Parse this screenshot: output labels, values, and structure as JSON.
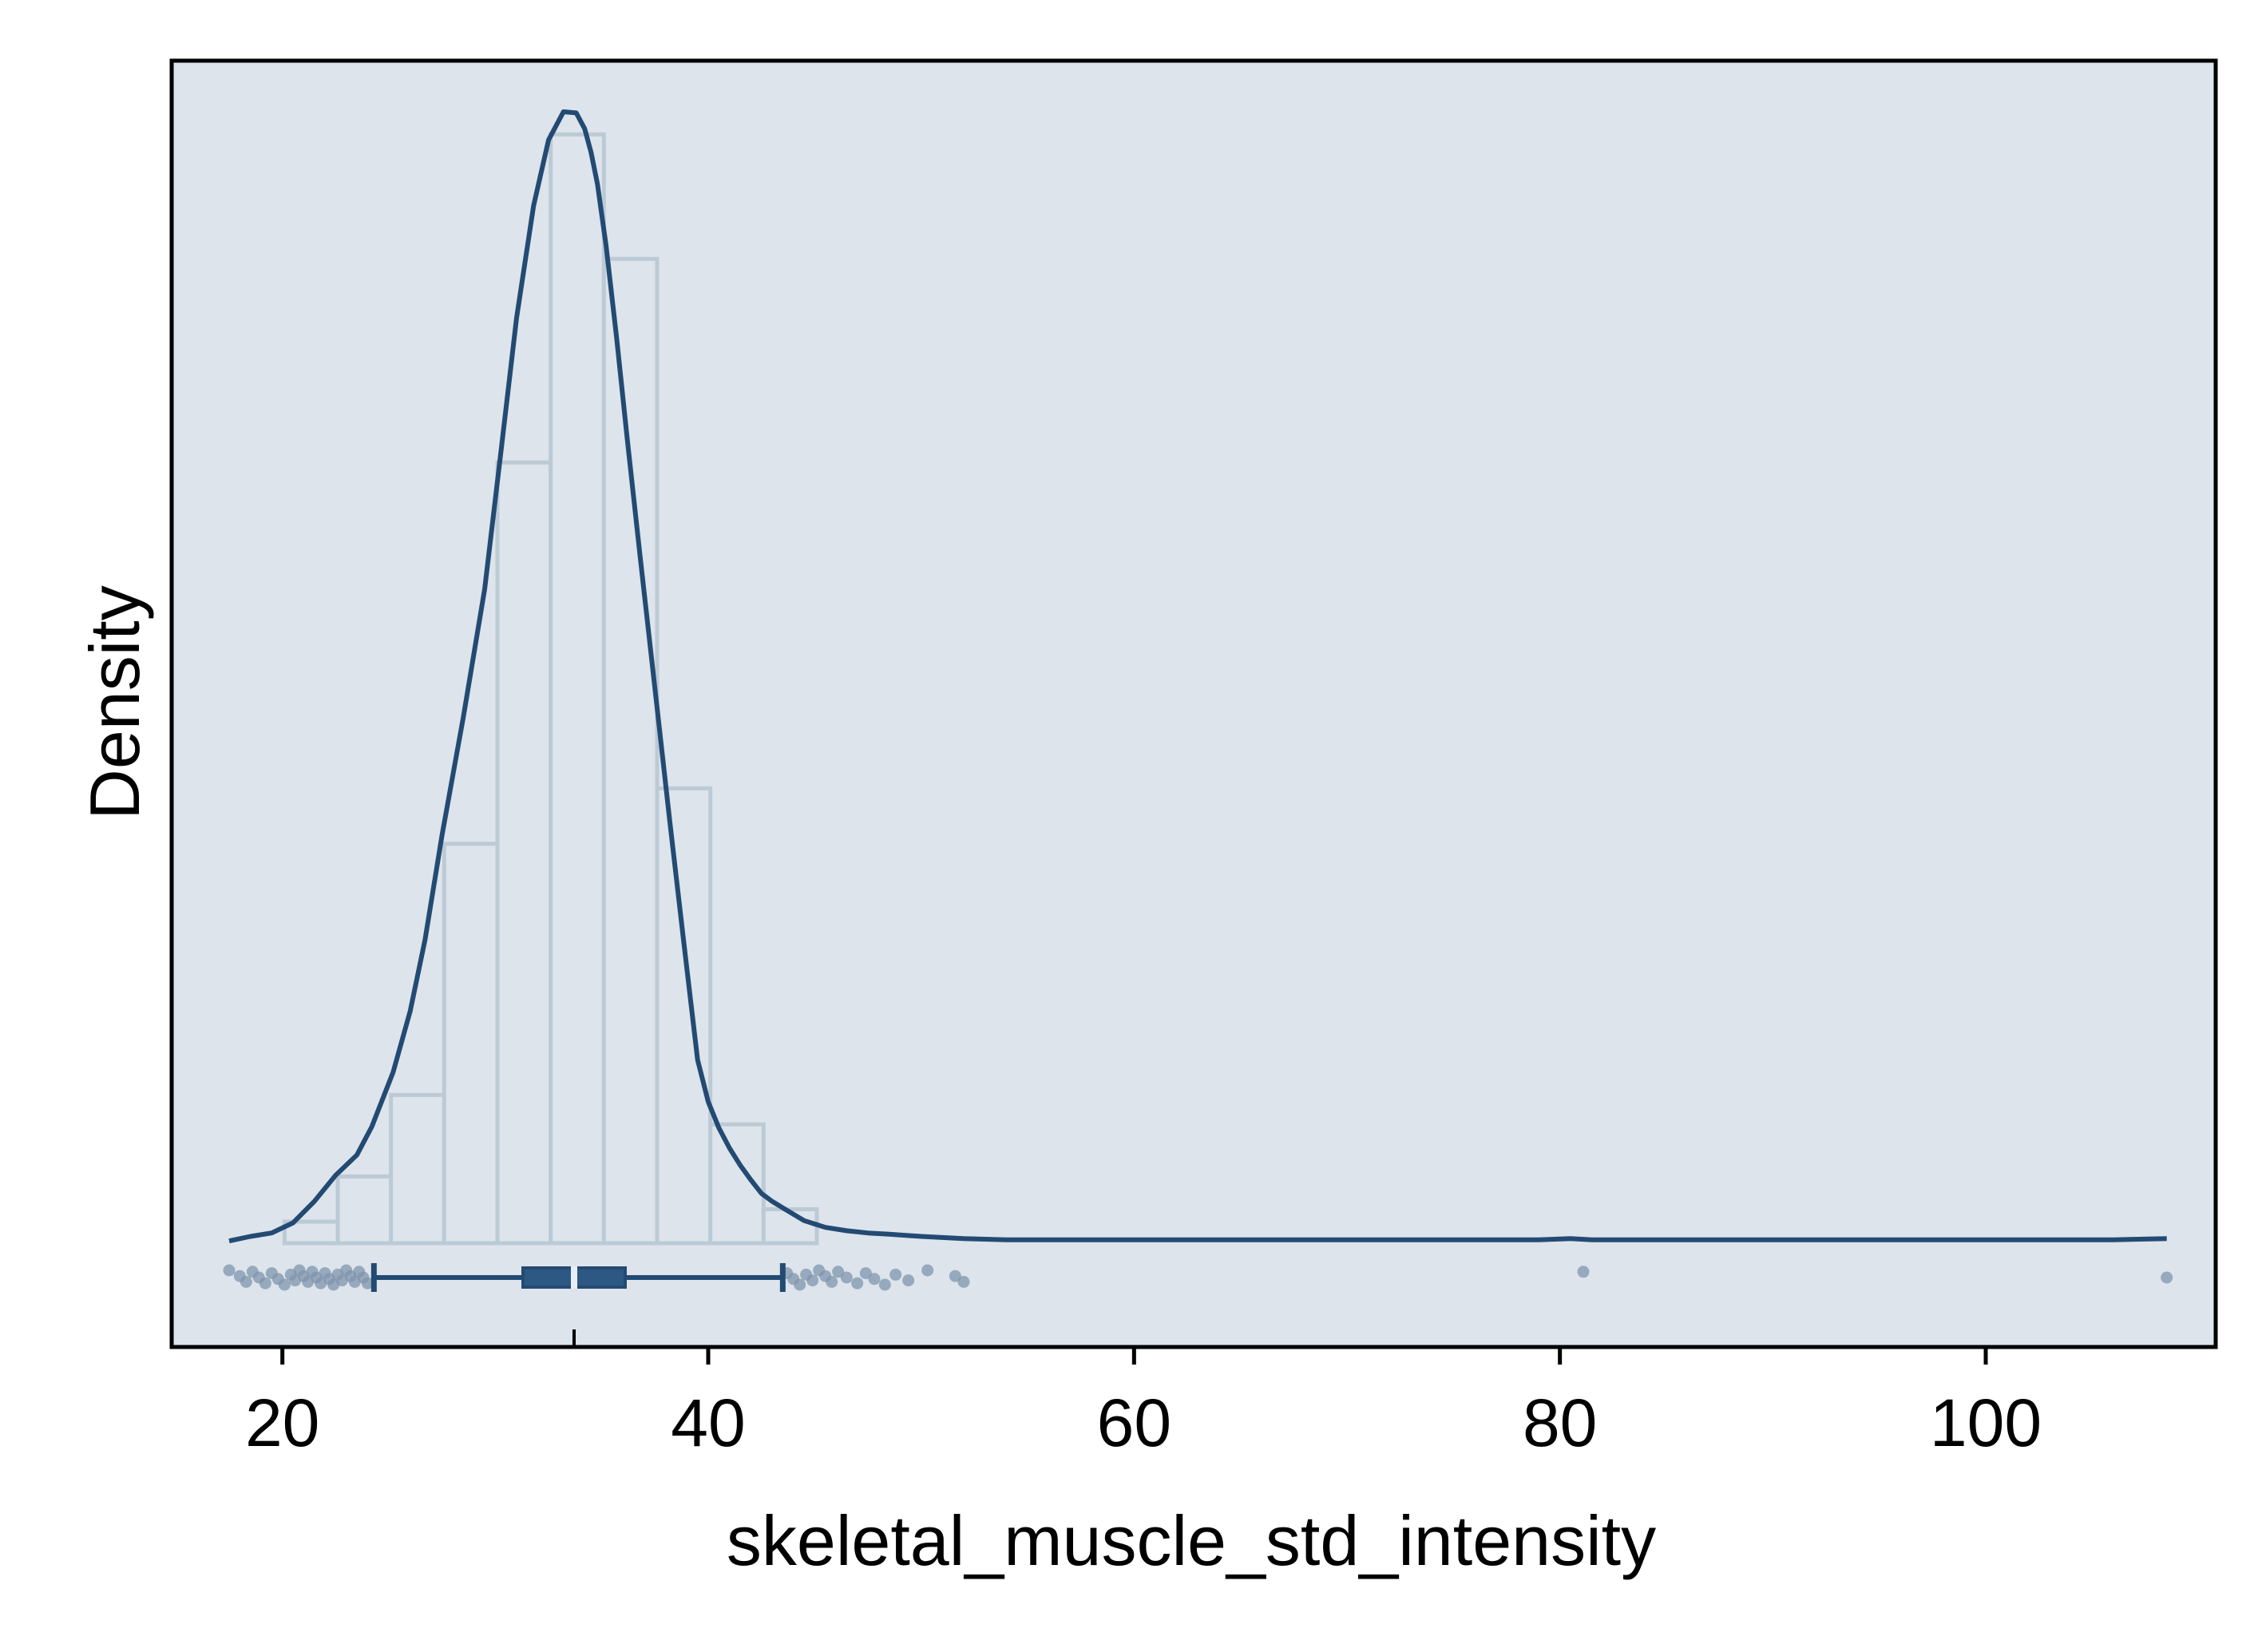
{
  "chart_data": {
    "type": "histogram",
    "title": "",
    "xlabel": "skeletal_muscle_std_intensity",
    "ylabel": "Density",
    "xlim": [
      14.8,
      110.8
    ],
    "xticks": [
      20,
      40,
      60,
      80,
      100
    ],
    "yticks_shown": false,
    "grid": false,
    "legend": "none",
    "colors": {
      "plot_background": "#dde4eb",
      "bar_fill": "#dde4eb",
      "bar_edge": "#bccad6",
      "kde_line": "#234a73",
      "box_fill": "#2e5884",
      "median": "#e8eef4",
      "points": "#7f96ad"
    },
    "histogram": {
      "bin_edges": [
        20.1,
        22.6,
        25.1,
        27.6,
        30.1,
        32.6,
        35.1,
        37.6,
        40.1,
        42.6,
        45.1
      ],
      "relative_heights": [
        0.019,
        0.059,
        0.131,
        0.353,
        0.69,
        0.98,
        0.87,
        0.402,
        0.105,
        0.03
      ]
    },
    "kde": {
      "x": [
        17.5,
        18.5,
        19.5,
        20.5,
        21.5,
        22.5,
        23.5,
        24.2,
        25.2,
        26.0,
        26.7,
        27.5,
        28.5,
        29.5,
        30.3,
        31.0,
        31.8,
        32.5,
        33.2,
        33.8,
        34.2,
        34.5,
        34.8,
        35.2,
        35.7,
        36.2,
        36.8,
        37.5,
        38.2,
        38.9,
        39.5,
        40.0,
        40.5,
        41.0,
        41.5,
        42.0,
        42.5,
        43.0,
        43.7,
        44.5,
        45.5,
        46.5,
        47.5,
        48.5,
        50.0,
        52.0,
        54.0,
        60.0,
        70.0,
        79.0,
        80.5,
        81.5,
        83.0,
        90.0,
        100.0,
        106.0,
        108.5
      ],
      "relative_density": [
        0.002,
        0.006,
        0.009,
        0.018,
        0.037,
        0.06,
        0.078,
        0.103,
        0.151,
        0.205,
        0.268,
        0.361,
        0.465,
        0.578,
        0.705,
        0.818,
        0.917,
        0.975,
        1.0,
        0.999,
        0.985,
        0.964,
        0.936,
        0.882,
        0.8,
        0.71,
        0.607,
        0.49,
        0.372,
        0.258,
        0.162,
        0.125,
        0.102,
        0.084,
        0.069,
        0.056,
        0.044,
        0.037,
        0.029,
        0.02,
        0.014,
        0.011,
        0.009,
        0.008,
        0.006,
        0.004,
        0.003,
        0.003,
        0.003,
        0.003,
        0.004,
        0.003,
        0.003,
        0.003,
        0.003,
        0.003,
        0.004
      ]
    },
    "boxplot": {
      "whisker_low": 24.3,
      "q1": 31.3,
      "median": 33.7,
      "q3": 36.1,
      "whisker_high": 43.5,
      "mean": 33.7
    },
    "outliers": [
      17.5,
      18.0,
      18.3,
      18.6,
      18.9,
      19.2,
      19.5,
      19.8,
      20.1,
      20.4,
      20.6,
      20.8,
      21.0,
      21.2,
      21.4,
      21.6,
      21.8,
      22.0,
      22.2,
      22.4,
      22.6,
      22.8,
      23.0,
      23.2,
      23.4,
      23.6,
      23.8,
      24.0,
      43.7,
      44.0,
      44.3,
      44.6,
      44.9,
      45.2,
      45.5,
      45.8,
      46.1,
      46.5,
      47.0,
      47.4,
      47.8,
      48.3,
      48.8,
      49.4,
      50.3,
      51.6,
      52.0,
      81.1,
      108.5
    ]
  }
}
